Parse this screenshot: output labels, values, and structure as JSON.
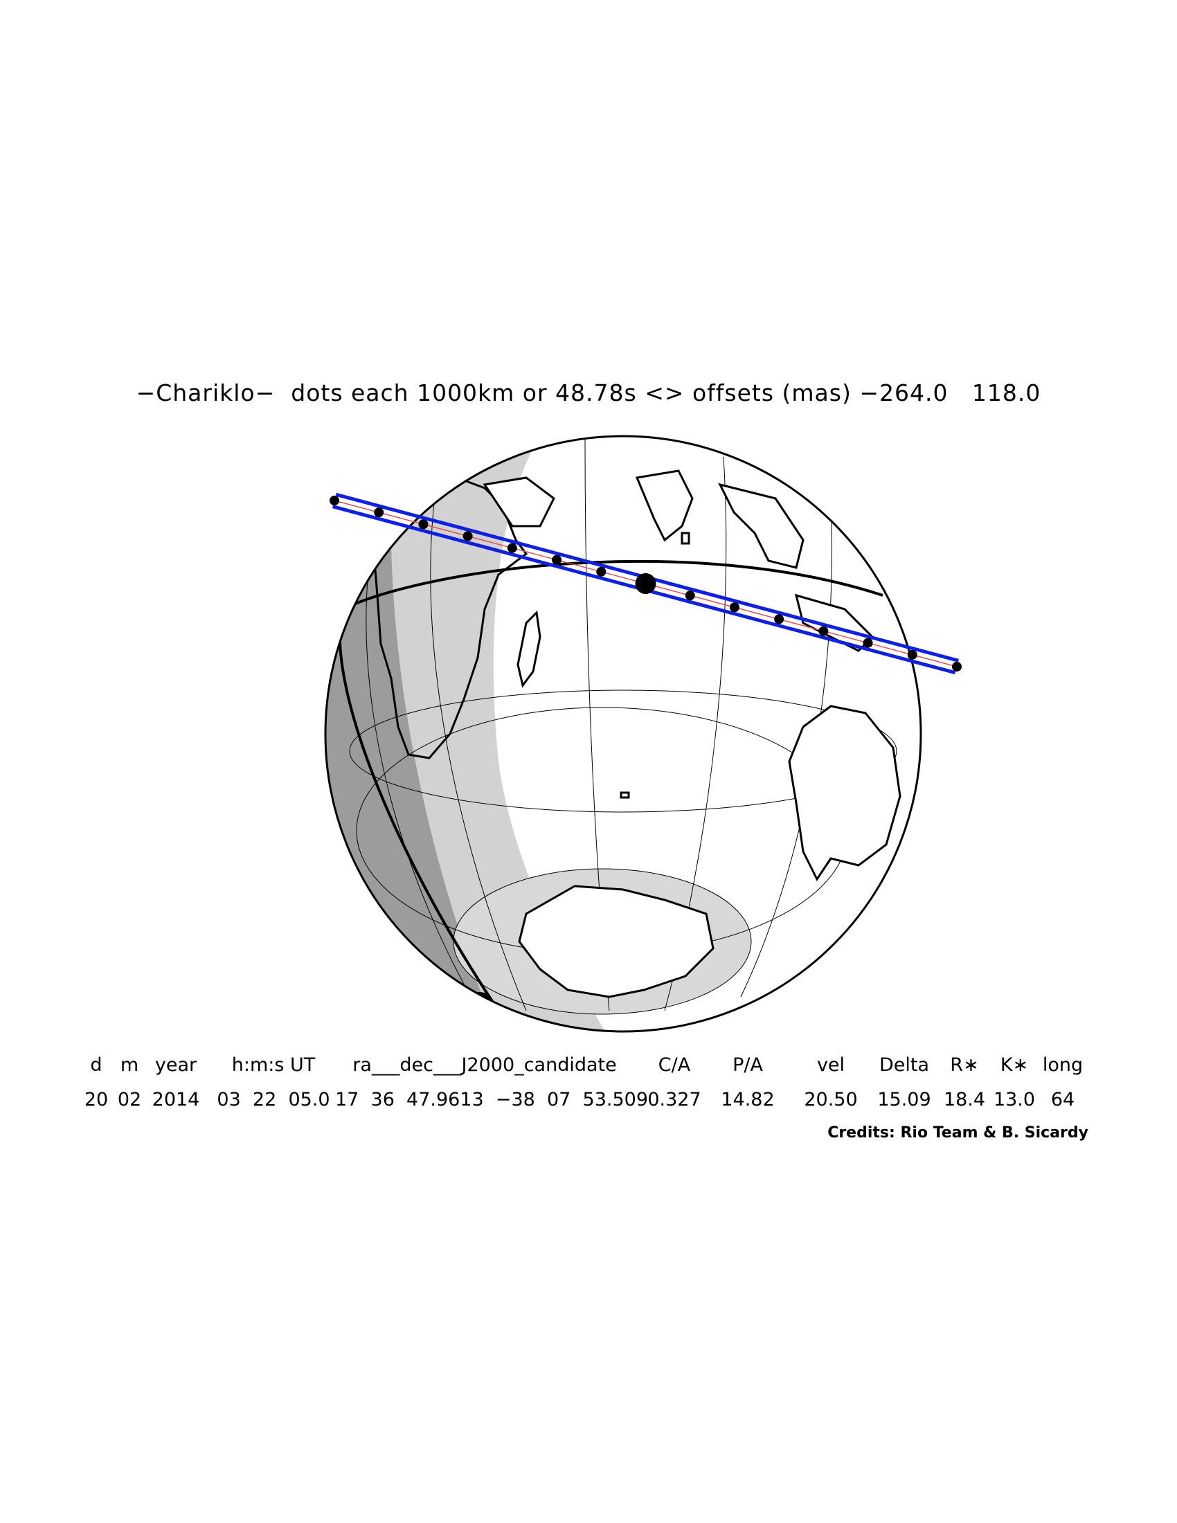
{
  "title": "−Chariklo−  dots each 1000km or 48.78s <> offsets (mas) −264.0   118.0",
  "table": {
    "headers": [
      "d",
      "m",
      "year",
      "h:m:s UT",
      "ra___dec___J2000_candidate",
      "C/A",
      "P/A",
      "vel",
      "Delta",
      "R∗",
      "K∗",
      "long"
    ],
    "values": [
      "20",
      "02",
      "2014",
      "03  22  05.0",
      "17  36  47.9613  −38  07  53.509",
      "0.327",
      "14.82",
      "20.50",
      "15.09",
      "18.4",
      "13.0",
      "64"
    ]
  },
  "credits": "Credits: Rio Team & B. Sicardy",
  "colors": {
    "path": "#1020e0",
    "night_shade": "#9c9c9c",
    "twilight_shade": "#d2d2d2",
    "background": "#ffffff"
  }
}
